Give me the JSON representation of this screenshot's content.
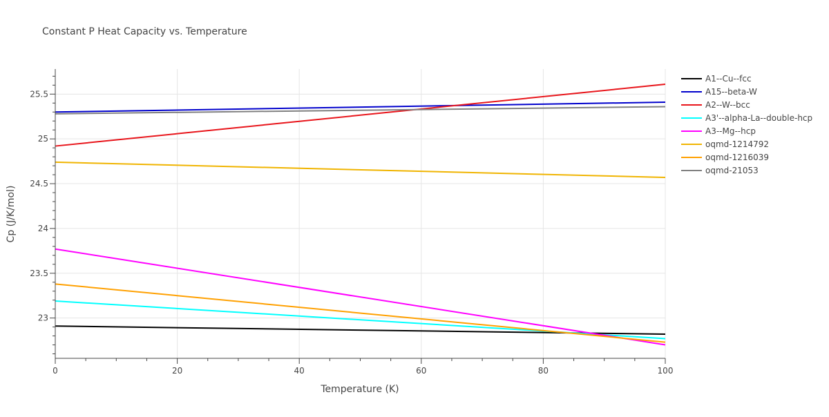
{
  "chart_data": {
    "type": "line",
    "title": "Constant P Heat Capacity vs. Temperature",
    "xlabel": "Temperature (K)",
    "ylabel": "Cp (J/K/mol)",
    "xlim": [
      0,
      100
    ],
    "ylim": [
      22.55,
      25.78
    ],
    "x_ticks": [
      0,
      20,
      40,
      60,
      80,
      100
    ],
    "x_tick_labels": [
      "0",
      "20",
      "40",
      "60",
      "80",
      "100"
    ],
    "y_ticks": [
      23,
      23.5,
      24,
      24.5,
      25,
      25.5
    ],
    "y_tick_labels": [
      "23",
      "23.5",
      "24",
      "24.5",
      "25",
      "25.5"
    ],
    "grid": true,
    "legend_position": "right",
    "series": [
      {
        "name": "A1--Cu--fcc",
        "color": "#000000",
        "x": [
          0,
          100
        ],
        "y": [
          22.91,
          22.82
        ]
      },
      {
        "name": "A15--beta-W",
        "color": "#0000cc",
        "x": [
          0,
          100
        ],
        "y": [
          25.3,
          25.41
        ]
      },
      {
        "name": "A2--W--bcc",
        "color": "#e8141a",
        "x": [
          0,
          100
        ],
        "y": [
          24.92,
          25.61
        ]
      },
      {
        "name": "A3'--alpha-La--double-hcp",
        "color": "#00ffff",
        "x": [
          0,
          100
        ],
        "y": [
          23.19,
          22.77
        ]
      },
      {
        "name": "A3--Mg--hcp",
        "color": "#ff00ff",
        "x": [
          0,
          100
        ],
        "y": [
          23.77,
          22.7
        ]
      },
      {
        "name": "oqmd-1214792",
        "color": "#f0b400",
        "x": [
          0,
          100
        ],
        "y": [
          24.74,
          24.57
        ]
      },
      {
        "name": "oqmd-1216039",
        "color": "#ffa000",
        "x": [
          0,
          100
        ],
        "y": [
          23.38,
          22.73
        ]
      },
      {
        "name": "oqmd-21053",
        "color": "#808080",
        "x": [
          0,
          100
        ],
        "y": [
          25.28,
          25.36
        ]
      }
    ]
  }
}
